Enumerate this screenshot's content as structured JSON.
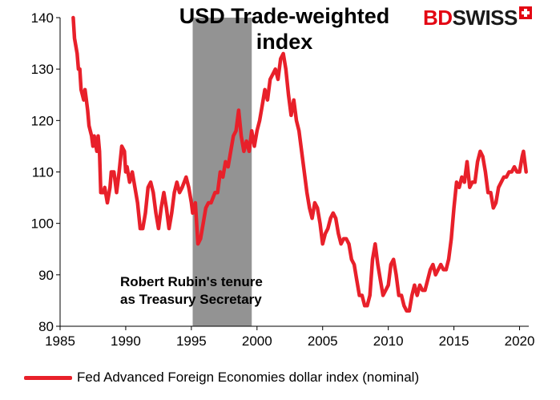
{
  "brand": {
    "part1": "BD",
    "part2": "SWISS"
  },
  "chart_data": {
    "type": "line",
    "title": "USD Trade-weighted index",
    "title_line1": "USD Trade-weighted",
    "title_line2": "index",
    "xlabel": "",
    "ylabel": "",
    "xlim": [
      1985,
      2020.7
    ],
    "ylim": [
      80,
      140
    ],
    "x_ticks": [
      1985,
      1990,
      1995,
      2000,
      2005,
      2010,
      2015,
      2020
    ],
    "y_ticks": [
      80,
      90,
      100,
      110,
      120,
      130,
      140
    ],
    "grid": false,
    "legend_position": "bottom",
    "shaded_region": {
      "start": 1995.1,
      "end": 1999.6,
      "color": "#939393"
    },
    "annotation": {
      "line1": "Robert Rubin's tenure",
      "line2": "as Treasury Secretary"
    },
    "series": [
      {
        "name": "Fed Advanced Foreign Economies dollar index (nominal)",
        "color": "#e8202a",
        "points": [
          [
            1986.0,
            140
          ],
          [
            1986.1,
            136
          ],
          [
            1986.3,
            133
          ],
          [
            1986.4,
            130
          ],
          [
            1986.5,
            130
          ],
          [
            1986.6,
            126
          ],
          [
            1986.8,
            124
          ],
          [
            1986.9,
            126
          ],
          [
            1987.0,
            124
          ],
          [
            1987.1,
            122
          ],
          [
            1987.2,
            119
          ],
          [
            1987.4,
            117
          ],
          [
            1987.5,
            115
          ],
          [
            1987.6,
            117
          ],
          [
            1987.8,
            114
          ],
          [
            1987.9,
            117
          ],
          [
            1988.0,
            114
          ],
          [
            1988.1,
            106
          ],
          [
            1988.3,
            106
          ],
          [
            1988.4,
            107
          ],
          [
            1988.6,
            104
          ],
          [
            1988.8,
            107
          ],
          [
            1988.9,
            110
          ],
          [
            1989.1,
            110
          ],
          [
            1989.3,
            106
          ],
          [
            1989.5,
            110
          ],
          [
            1989.7,
            115
          ],
          [
            1989.9,
            114
          ],
          [
            1990.0,
            110
          ],
          [
            1990.1,
            111
          ],
          [
            1990.3,
            108
          ],
          [
            1990.5,
            110
          ],
          [
            1990.7,
            107
          ],
          [
            1990.9,
            104
          ],
          [
            1991.1,
            99
          ],
          [
            1991.3,
            99
          ],
          [
            1991.5,
            102
          ],
          [
            1991.7,
            107
          ],
          [
            1991.9,
            108
          ],
          [
            1992.1,
            106
          ],
          [
            1992.3,
            102
          ],
          [
            1992.5,
            99
          ],
          [
            1992.7,
            103
          ],
          [
            1992.9,
            106
          ],
          [
            1993.1,
            103
          ],
          [
            1993.3,
            99
          ],
          [
            1993.5,
            102
          ],
          [
            1993.7,
            106
          ],
          [
            1993.9,
            108
          ],
          [
            1994.1,
            106
          ],
          [
            1994.3,
            107
          ],
          [
            1994.6,
            109
          ],
          [
            1994.8,
            107
          ],
          [
            1995.0,
            104
          ],
          [
            1995.1,
            102
          ],
          [
            1995.3,
            104
          ],
          [
            1995.5,
            96
          ],
          [
            1995.7,
            97
          ],
          [
            1995.9,
            100
          ],
          [
            1996.1,
            103
          ],
          [
            1996.3,
            104
          ],
          [
            1996.5,
            104
          ],
          [
            1996.8,
            106
          ],
          [
            1997.0,
            106
          ],
          [
            1997.2,
            110
          ],
          [
            1997.4,
            109
          ],
          [
            1997.6,
            112
          ],
          [
            1997.8,
            111
          ],
          [
            1998.0,
            114
          ],
          [
            1998.2,
            117
          ],
          [
            1998.4,
            118
          ],
          [
            1998.6,
            122
          ],
          [
            1998.8,
            117
          ],
          [
            1999.0,
            114
          ],
          [
            1999.2,
            116
          ],
          [
            1999.4,
            114
          ],
          [
            1999.6,
            118
          ],
          [
            1999.8,
            115
          ],
          [
            2000.0,
            118
          ],
          [
            2000.2,
            120
          ],
          [
            2000.4,
            123
          ],
          [
            2000.6,
            126
          ],
          [
            2000.8,
            124
          ],
          [
            2001.0,
            128
          ],
          [
            2001.2,
            129
          ],
          [
            2001.4,
            130
          ],
          [
            2001.6,
            128
          ],
          [
            2001.8,
            132
          ],
          [
            2002.0,
            133
          ],
          [
            2002.2,
            130
          ],
          [
            2002.4,
            125
          ],
          [
            2002.6,
            121
          ],
          [
            2002.8,
            124
          ],
          [
            2003.0,
            120
          ],
          [
            2003.2,
            118
          ],
          [
            2003.4,
            114
          ],
          [
            2003.6,
            110
          ],
          [
            2003.8,
            106
          ],
          [
            2004.0,
            103
          ],
          [
            2004.2,
            101
          ],
          [
            2004.4,
            104
          ],
          [
            2004.6,
            103
          ],
          [
            2004.8,
            100
          ],
          [
            2005.0,
            96
          ],
          [
            2005.2,
            98
          ],
          [
            2005.4,
            99
          ],
          [
            2005.6,
            101
          ],
          [
            2005.8,
            102
          ],
          [
            2006.0,
            101
          ],
          [
            2006.2,
            98
          ],
          [
            2006.4,
            96
          ],
          [
            2006.6,
            97
          ],
          [
            2006.8,
            97
          ],
          [
            2007.0,
            96
          ],
          [
            2007.2,
            93
          ],
          [
            2007.4,
            92
          ],
          [
            2007.6,
            89
          ],
          [
            2007.8,
            86
          ],
          [
            2008.0,
            86
          ],
          [
            2008.2,
            84
          ],
          [
            2008.4,
            84
          ],
          [
            2008.6,
            86
          ],
          [
            2008.8,
            93
          ],
          [
            2009.0,
            96
          ],
          [
            2009.2,
            92
          ],
          [
            2009.4,
            89
          ],
          [
            2009.6,
            86
          ],
          [
            2009.8,
            87
          ],
          [
            2010.0,
            88
          ],
          [
            2010.2,
            92
          ],
          [
            2010.4,
            93
          ],
          [
            2010.6,
            90
          ],
          [
            2010.8,
            86
          ],
          [
            2011.0,
            86
          ],
          [
            2011.2,
            84
          ],
          [
            2011.4,
            83
          ],
          [
            2011.6,
            83
          ],
          [
            2011.8,
            86
          ],
          [
            2012.0,
            88
          ],
          [
            2012.2,
            86
          ],
          [
            2012.4,
            88
          ],
          [
            2012.6,
            87
          ],
          [
            2012.8,
            87
          ],
          [
            2013.0,
            89
          ],
          [
            2013.2,
            91
          ],
          [
            2013.4,
            92
          ],
          [
            2013.6,
            90
          ],
          [
            2013.8,
            91
          ],
          [
            2014.0,
            92
          ],
          [
            2014.2,
            91
          ],
          [
            2014.4,
            91
          ],
          [
            2014.6,
            93
          ],
          [
            2014.8,
            97
          ],
          [
            2015.0,
            103
          ],
          [
            2015.2,
            108
          ],
          [
            2015.4,
            107
          ],
          [
            2015.6,
            109
          ],
          [
            2015.8,
            108
          ],
          [
            2016.0,
            112
          ],
          [
            2016.2,
            107
          ],
          [
            2016.4,
            108
          ],
          [
            2016.6,
            108
          ],
          [
            2016.8,
            112
          ],
          [
            2017.0,
            114
          ],
          [
            2017.2,
            113
          ],
          [
            2017.4,
            110
          ],
          [
            2017.6,
            106
          ],
          [
            2017.8,
            106
          ],
          [
            2018.0,
            103
          ],
          [
            2018.2,
            104
          ],
          [
            2018.4,
            107
          ],
          [
            2018.6,
            108
          ],
          [
            2018.8,
            109
          ],
          [
            2019.0,
            109
          ],
          [
            2019.2,
            110
          ],
          [
            2019.4,
            110
          ],
          [
            2019.6,
            111
          ],
          [
            2019.8,
            110
          ],
          [
            2020.0,
            110
          ],
          [
            2020.2,
            113
          ],
          [
            2020.3,
            114
          ],
          [
            2020.5,
            110
          ]
        ]
      }
    ]
  }
}
